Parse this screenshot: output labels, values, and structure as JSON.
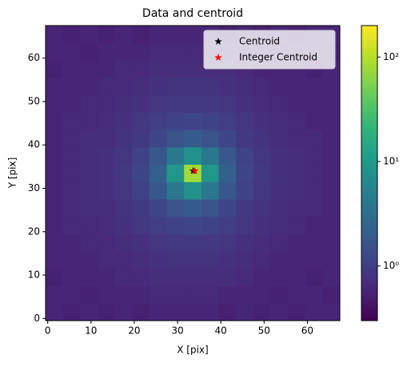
{
  "chart_data": {
    "type": "image",
    "title": "Data and centroid",
    "xlabel": "X [pix]",
    "ylabel": "Y [pix]",
    "xlim": [
      -0.5,
      67.5
    ],
    "ylim": [
      -0.5,
      67.5
    ],
    "xticks": [
      0,
      10,
      20,
      30,
      40,
      50,
      60
    ],
    "yticks": [
      0,
      10,
      20,
      30,
      40,
      50,
      60
    ],
    "colormap": "viridis",
    "color_scale": "log",
    "clim": [
      0.3,
      200
    ],
    "colorbar_ticks": [
      {
        "value": 1,
        "label": "10⁰"
      },
      {
        "value": 10,
        "label": "10¹"
      },
      {
        "value": 100,
        "label": "10²"
      }
    ],
    "z": [
      [
        0.6,
        0.55,
        0.6,
        0.55,
        0.6,
        0.55,
        0.6,
        0.6,
        0.6,
        0.6,
        0.55,
        0.6,
        0.55,
        0.6,
        0.55,
        0.6,
        0.6
      ],
      [
        0.6,
        0.6,
        0.55,
        0.6,
        0.6,
        0.6,
        0.65,
        0.65,
        0.65,
        0.65,
        0.6,
        0.6,
        0.6,
        0.55,
        0.6,
        0.6,
        0.55
      ],
      [
        0.55,
        0.6,
        0.6,
        0.6,
        0.65,
        0.65,
        0.7,
        0.7,
        0.7,
        0.7,
        0.7,
        0.65,
        0.6,
        0.6,
        0.6,
        0.55,
        0.6
      ],
      [
        0.6,
        0.6,
        0.6,
        0.65,
        0.65,
        0.7,
        0.75,
        0.8,
        0.8,
        0.8,
        0.75,
        0.7,
        0.65,
        0.6,
        0.6,
        0.6,
        0.6
      ],
      [
        0.6,
        0.6,
        0.65,
        0.65,
        0.7,
        0.75,
        0.85,
        0.9,
        0.9,
        0.9,
        0.85,
        0.75,
        0.7,
        0.65,
        0.6,
        0.6,
        0.6
      ],
      [
        0.6,
        0.65,
        0.65,
        0.7,
        0.75,
        0.85,
        1.0,
        1.1,
        1.2,
        1.1,
        1.0,
        0.85,
        0.75,
        0.7,
        0.65,
        0.6,
        0.6
      ],
      [
        0.6,
        0.65,
        0.7,
        0.7,
        0.8,
        0.9,
        1.2,
        1.6,
        2.0,
        1.6,
        1.2,
        0.9,
        0.8,
        0.7,
        0.65,
        0.65,
        0.6
      ],
      [
        0.6,
        0.65,
        0.7,
        0.75,
        0.85,
        1.1,
        1.8,
        4,
        8,
        4,
        1.8,
        1.1,
        0.85,
        0.75,
        0.7,
        0.65,
        0.6
      ],
      [
        0.6,
        0.65,
        0.7,
        0.75,
        0.9,
        1.2,
        2.2,
        9,
        80,
        9,
        2.2,
        1.2,
        0.9,
        0.75,
        0.7,
        0.65,
        0.6
      ],
      [
        0.6,
        0.65,
        0.7,
        0.75,
        0.85,
        1.1,
        1.8,
        4,
        8,
        4,
        1.8,
        1.1,
        0.85,
        0.75,
        0.7,
        0.65,
        0.6
      ],
      [
        0.6,
        0.65,
        0.7,
        0.7,
        0.8,
        0.9,
        1.2,
        1.6,
        2.0,
        1.6,
        1.2,
        0.9,
        0.8,
        0.7,
        0.65,
        0.65,
        0.6
      ],
      [
        0.6,
        0.65,
        0.65,
        0.7,
        0.75,
        0.85,
        1.0,
        1.1,
        1.2,
        1.1,
        1.0,
        0.85,
        0.75,
        0.7,
        0.65,
        0.6,
        0.6
      ],
      [
        0.6,
        0.6,
        0.65,
        0.65,
        0.7,
        0.75,
        0.85,
        0.9,
        0.9,
        0.9,
        0.85,
        0.75,
        0.7,
        0.65,
        0.6,
        0.6,
        0.6
      ],
      [
        0.6,
        0.6,
        0.6,
        0.65,
        0.65,
        0.7,
        0.75,
        0.8,
        0.8,
        0.8,
        0.75,
        0.7,
        0.65,
        0.6,
        0.6,
        0.6,
        0.6
      ],
      [
        0.55,
        0.6,
        0.6,
        0.6,
        0.65,
        0.65,
        0.7,
        0.7,
        0.7,
        0.7,
        0.7,
        0.65,
        0.6,
        0.6,
        0.6,
        0.55,
        0.6
      ],
      [
        0.6,
        0.6,
        0.55,
        0.6,
        0.6,
        0.6,
        0.65,
        0.65,
        0.65,
        0.65,
        0.6,
        0.6,
        0.6,
        0.55,
        0.6,
        0.6,
        0.55
      ],
      [
        0.6,
        0.55,
        0.6,
        0.55,
        0.6,
        0.55,
        0.6,
        0.6,
        0.6,
        0.6,
        0.55,
        0.6,
        0.55,
        0.6,
        0.55,
        0.6,
        0.6
      ]
    ],
    "legend": "upper right",
    "series": [
      {
        "name": "Centroid",
        "color": "#000000",
        "marker": "star",
        "x": [
          33.6
        ],
        "y": [
          34.0
        ]
      },
      {
        "name": "Integer Centroid",
        "color": "#ff0000",
        "marker": "star",
        "x": [
          34
        ],
        "y": [
          34
        ]
      }
    ]
  }
}
